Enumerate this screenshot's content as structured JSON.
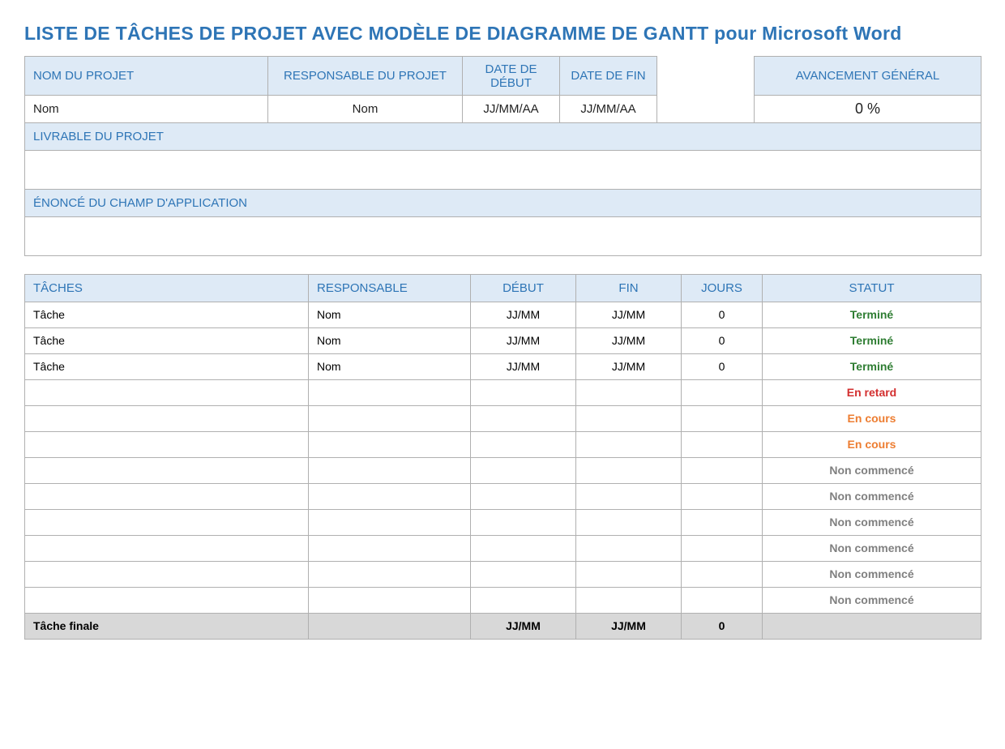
{
  "title": "LISTE DE TÂCHES DE PROJET AVEC MODÈLE DE DIAGRAMME DE GANTT pour Microsoft Word",
  "colors": {
    "header_bg": "#deeaf6",
    "header_text": "#2e75b6",
    "border": "#b0b0b0",
    "final_row_bg": "#d8d8d8",
    "status_done": "#2e7d32",
    "status_late": "#d32f2f",
    "status_progress": "#ed7d31",
    "status_notstarted": "#808080"
  },
  "project_header": {
    "cols": {
      "name": "NOM DU PROJET",
      "owner": "RESPONSABLE DU PROJET",
      "start": "DATE DE DÉBUT",
      "end": "DATE DE FIN",
      "progress": "AVANCEMENT GÉNÉRAL"
    },
    "values": {
      "name": "Nom",
      "owner": "Nom",
      "start": "JJ/MM/AA",
      "end": "JJ/MM/AA",
      "progress": "0 %"
    },
    "deliverable_label": "LIVRABLE DU PROJET",
    "scope_label": "ÉNONCÉ DU CHAMP D'APPLICATION"
  },
  "tasks_header": {
    "task": "TÂCHES",
    "owner": "RESPONSABLE",
    "start": "DÉBUT",
    "end": "FIN",
    "days": "JOURS",
    "status": "STATUT"
  },
  "col_widths": {
    "project": [
      "300",
      "240",
      "120",
      "120",
      "120",
      "280"
    ],
    "tasks": [
      "350",
      "200",
      "130",
      "130",
      "100",
      "270"
    ]
  },
  "status_colors": {
    "Terminé": "#2e7d32",
    "En retard": "#d32f2f",
    "En cours": "#ed7d31",
    "Non commencé": "#808080"
  },
  "tasks": [
    {
      "task": "Tâche",
      "owner": "Nom",
      "start": "JJ/MM",
      "end": "JJ/MM",
      "days": "0",
      "status": "Terminé"
    },
    {
      "task": "Tâche",
      "owner": "Nom",
      "start": "JJ/MM",
      "end": "JJ/MM",
      "days": "0",
      "status": "Terminé"
    },
    {
      "task": "Tâche",
      "owner": "Nom",
      "start": "JJ/MM",
      "end": "JJ/MM",
      "days": "0",
      "status": "Terminé"
    },
    {
      "task": "",
      "owner": "",
      "start": "",
      "end": "",
      "days": "",
      "status": "En retard"
    },
    {
      "task": "",
      "owner": "",
      "start": "",
      "end": "",
      "days": "",
      "status": "En cours"
    },
    {
      "task": "",
      "owner": "",
      "start": "",
      "end": "",
      "days": "",
      "status": "En cours"
    },
    {
      "task": "",
      "owner": "",
      "start": "",
      "end": "",
      "days": "",
      "status": "Non commencé"
    },
    {
      "task": "",
      "owner": "",
      "start": "",
      "end": "",
      "days": "",
      "status": "Non commencé"
    },
    {
      "task": "",
      "owner": "",
      "start": "",
      "end": "",
      "days": "",
      "status": "Non commencé"
    },
    {
      "task": "",
      "owner": "",
      "start": "",
      "end": "",
      "days": "",
      "status": "Non commencé"
    },
    {
      "task": "",
      "owner": "",
      "start": "",
      "end": "",
      "days": "",
      "status": "Non commencé"
    },
    {
      "task": "",
      "owner": "",
      "start": "",
      "end": "",
      "days": "",
      "status": "Non commencé"
    }
  ],
  "final_row": {
    "task": "Tâche finale",
    "owner": "",
    "start": "JJ/MM",
    "end": "JJ/MM",
    "days": "0",
    "status": ""
  }
}
